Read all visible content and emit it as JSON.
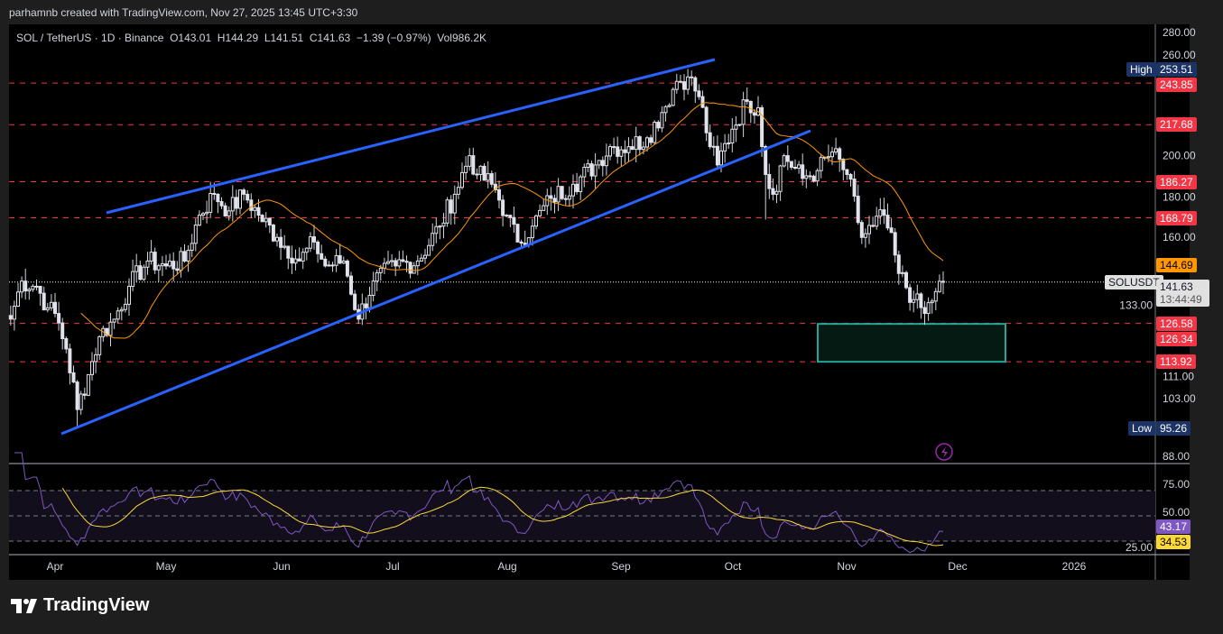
{
  "header": {
    "credit": "parhamnb created with TradingView.com, Nov 27, 2025 13:45 UTC+3:30",
    "legend": "SOL / TetherUS · 1D · Binance  O143.01  H144.29  L141.51  C141.63  −1.39 (−0.97%)  Vol986.2K"
  },
  "price_axis": {
    "ticks": [
      "280.00",
      "260.00",
      "200.00",
      "180.00",
      "160.00",
      "133.00",
      "111.00",
      "103.00",
      "88.00"
    ],
    "tick_values": [
      280,
      260,
      200,
      180,
      160,
      133,
      111,
      103,
      88
    ]
  },
  "levels": [
    {
      "label": "243.85",
      "value": 243.85
    },
    {
      "label": "217.68",
      "value": 217.68
    },
    {
      "label": "186.27",
      "value": 186.27
    },
    {
      "label": "168.79",
      "value": 168.79
    },
    {
      "label": "126.58",
      "value": 126.58
    },
    {
      "label": "113.92",
      "value": 113.92
    }
  ],
  "extra_labels": {
    "low_zone": "126.34",
    "ma": "144.69",
    "symbol": "SOLUSDT",
    "last": "141.63",
    "countdown": "13:44:49",
    "high_label": "High",
    "high": "253.51",
    "low_label": "Low",
    "low": "95.26"
  },
  "rsi": {
    "ticks": [
      "75.00",
      "50.00",
      "25.00"
    ],
    "rsi_value": "43.17",
    "ma_value": "34.53"
  },
  "time_axis": [
    "Apr",
    "May",
    "Jun",
    "Jul",
    "Aug",
    "Sep",
    "Oct",
    "Nov",
    "Dec",
    "2026"
  ],
  "colors": {
    "up": "#ffffff",
    "down": "#d1d4dc",
    "level": "#f23645",
    "channel": "#2962ff",
    "ma": "#ff9800",
    "rsi": "#7e57c2",
    "rsima": "#fdd835",
    "zone": "#26a69a"
  },
  "keypoints": [
    [
      -12,
      128
    ],
    [
      -9,
      142
    ],
    [
      -5,
      140
    ],
    [
      -2,
      132
    ],
    [
      0,
      130
    ],
    [
      3,
      118
    ],
    [
      6,
      100
    ],
    [
      9,
      110
    ],
    [
      12,
      122
    ],
    [
      16,
      128
    ],
    [
      20,
      140
    ],
    [
      25,
      150
    ],
    [
      30,
      148
    ],
    [
      35,
      150
    ],
    [
      39,
      170
    ],
    [
      43,
      180
    ],
    [
      47,
      172
    ],
    [
      51,
      180
    ],
    [
      55,
      170
    ],
    [
      60,
      160
    ],
    [
      66,
      150
    ],
    [
      70,
      158
    ],
    [
      73,
      148
    ],
    [
      78,
      150
    ],
    [
      82,
      128
    ],
    [
      86,
      142
    ],
    [
      92,
      148
    ],
    [
      98,
      150
    ],
    [
      104,
      165
    ],
    [
      108,
      180
    ],
    [
      112,
      200
    ],
    [
      114,
      190
    ],
    [
      118,
      185
    ],
    [
      122,
      170
    ],
    [
      125,
      158
    ],
    [
      129,
      165
    ],
    [
      134,
      178
    ],
    [
      140,
      185
    ],
    [
      146,
      195
    ],
    [
      150,
      205
    ],
    [
      155,
      205
    ],
    [
      160,
      210
    ],
    [
      164,
      225
    ],
    [
      168,
      245
    ],
    [
      171,
      248
    ],
    [
      174,
      235
    ],
    [
      177,
      205
    ],
    [
      179,
      195
    ],
    [
      183,
      215
    ],
    [
      187,
      232
    ],
    [
      190,
      228
    ],
    [
      192,
      190
    ],
    [
      194,
      180
    ],
    [
      197,
      200
    ],
    [
      202,
      188
    ],
    [
      206,
      192
    ],
    [
      210,
      202
    ],
    [
      214,
      190
    ],
    [
      218,
      160
    ],
    [
      221,
      165
    ],
    [
      224,
      170
    ],
    [
      228,
      145
    ],
    [
      232,
      135
    ],
    [
      235,
      130
    ],
    [
      238,
      138
    ],
    [
      240,
      141.63
    ]
  ],
  "footer": {
    "brand": "TradingView"
  }
}
